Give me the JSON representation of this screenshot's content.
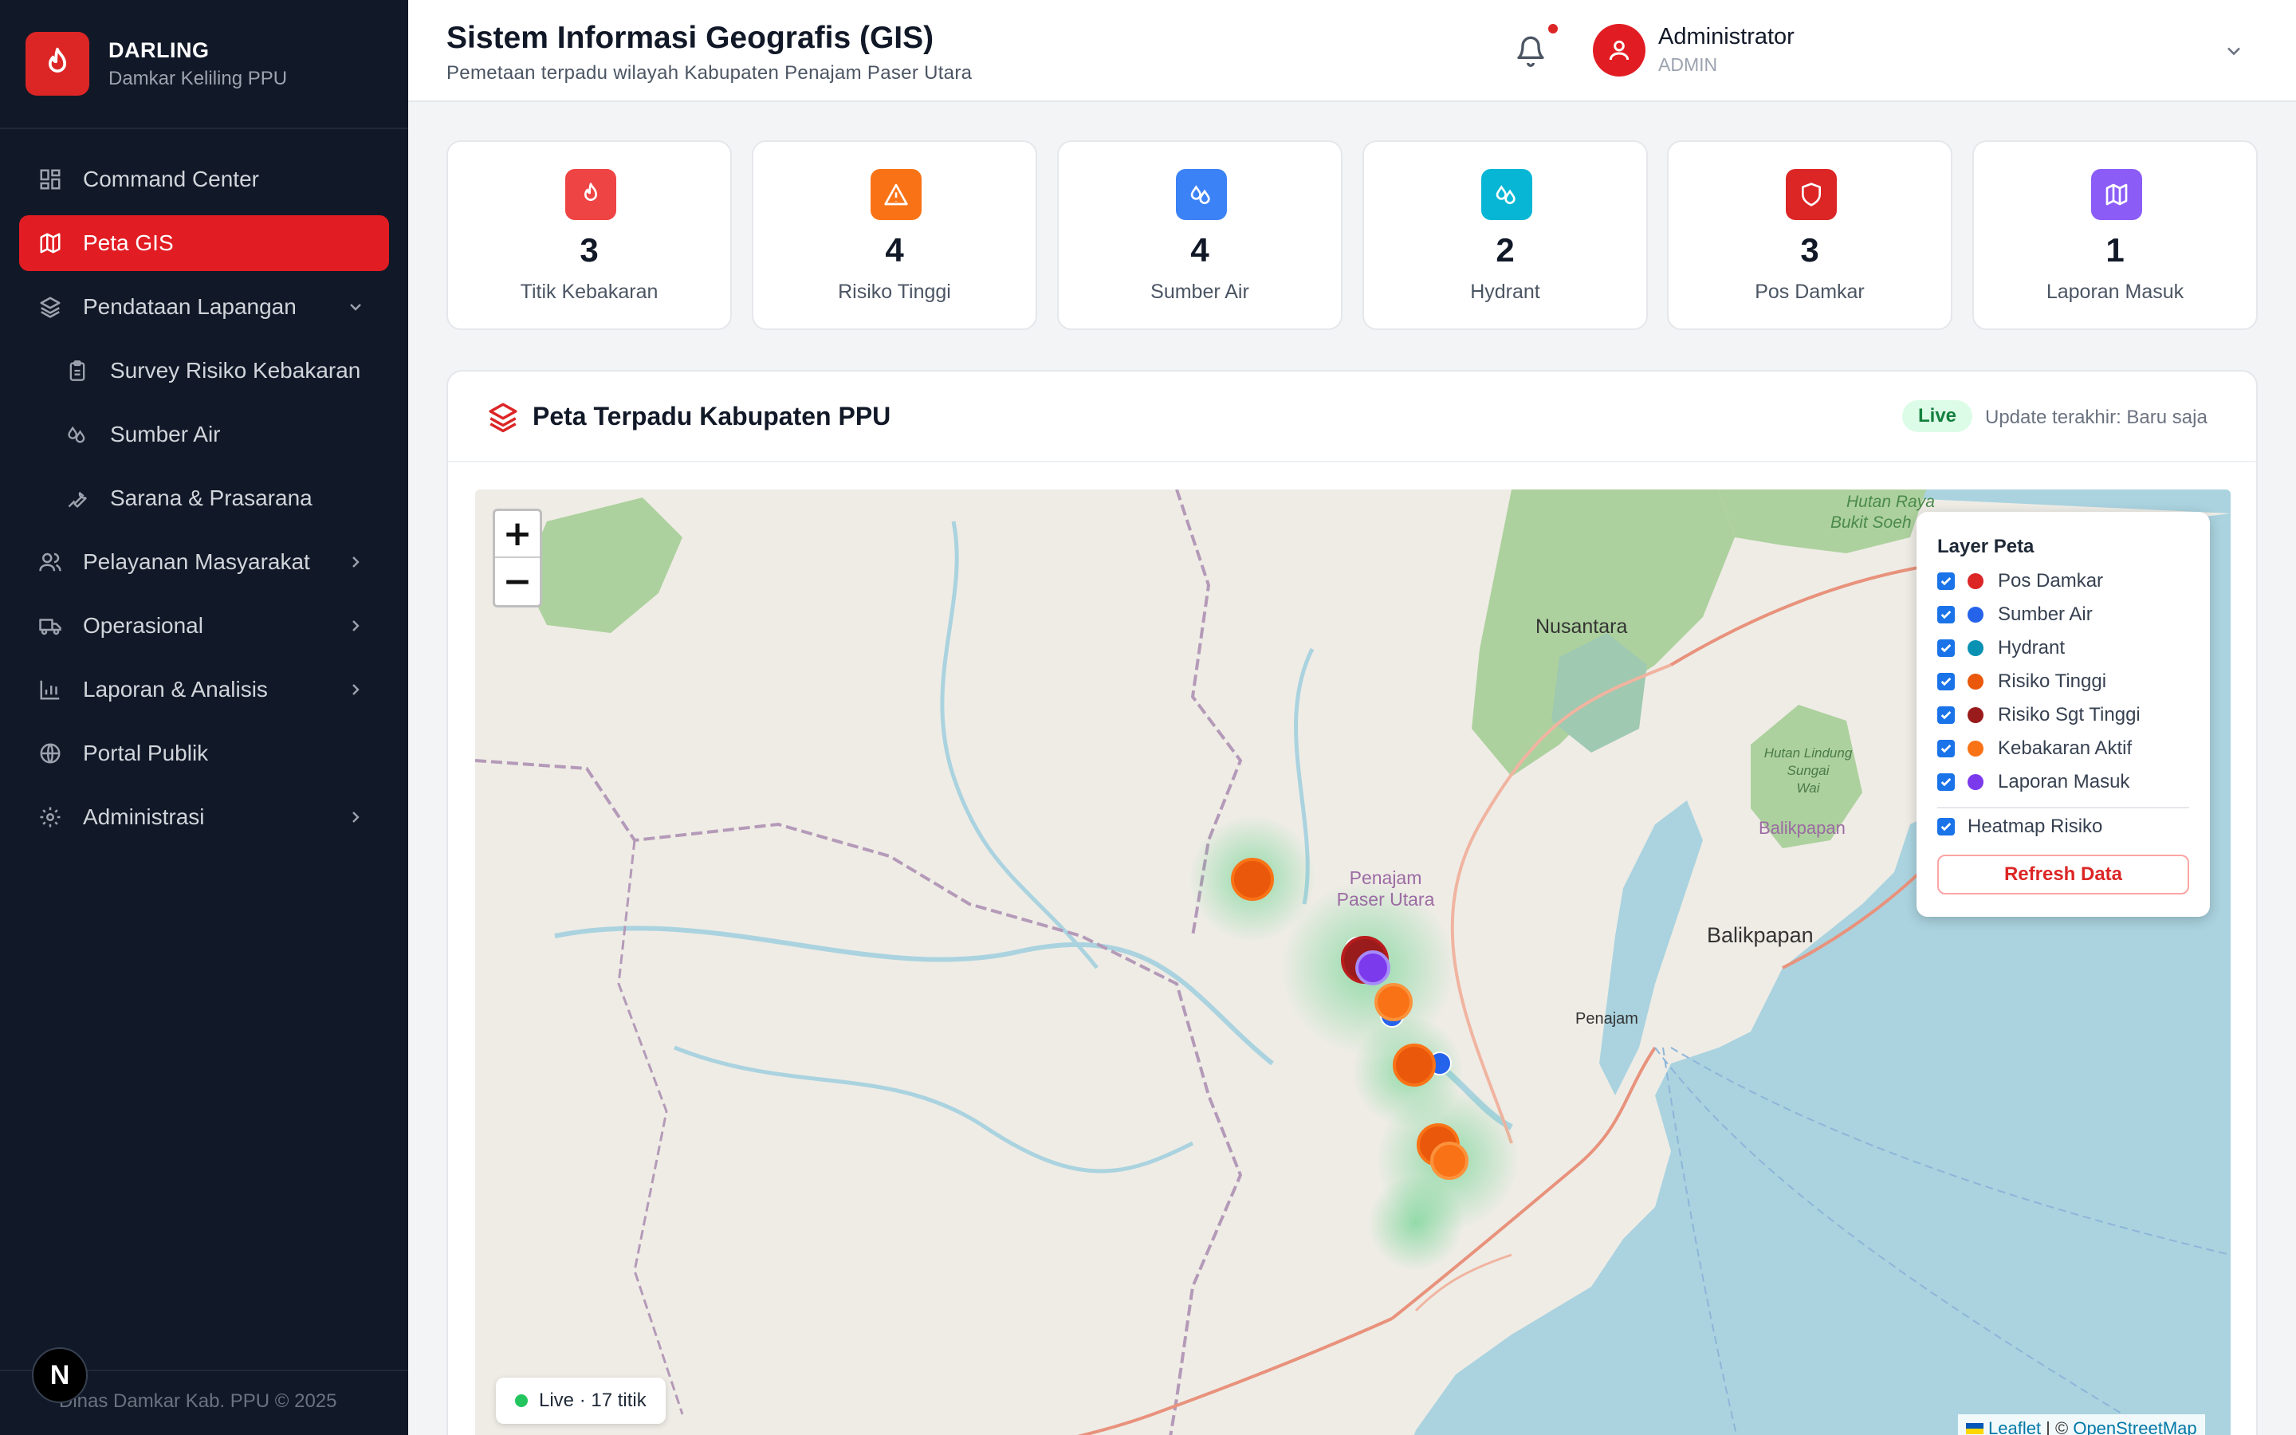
{
  "brand": {
    "title": "DARLING",
    "subtitle": "Damkar Keliling PPU"
  },
  "sidebar": {
    "items": [
      {
        "label": "Command Center",
        "icon": "grid-icon"
      },
      {
        "label": "Peta GIS",
        "icon": "map-icon",
        "active": true
      },
      {
        "label": "Pendataan Lapangan",
        "icon": "layers-icon",
        "expanded": true
      },
      {
        "label": "Survey Risiko Kebakaran",
        "icon": "clipboard-icon",
        "sub": true
      },
      {
        "label": "Sumber Air",
        "icon": "droplets-icon",
        "sub": true
      },
      {
        "label": "Sarana & Prasarana",
        "icon": "wrench-icon",
        "sub": true
      },
      {
        "label": "Pelayanan Masyarakat",
        "icon": "users-icon"
      },
      {
        "label": "Operasional",
        "icon": "truck-icon"
      },
      {
        "label": "Laporan & Analisis",
        "icon": "bar-chart-icon"
      },
      {
        "label": "Portal Publik",
        "icon": "globe-icon"
      },
      {
        "label": "Administrasi",
        "icon": "gear-icon"
      }
    ],
    "footer": "Dinas Damkar Kab. PPU © 2025",
    "badge": "N"
  },
  "header": {
    "title": "Sistem Informasi Geografis (GIS)",
    "subtitle": "Pemetaan terpadu wilayah Kabupaten Penajam Paser Utara",
    "user_name": "Administrator",
    "user_role": "ADMIN"
  },
  "stats": [
    {
      "value": "3",
      "label": "Titik Kebakaran",
      "color": "#ef4444",
      "icon": "flame-icon"
    },
    {
      "value": "4",
      "label": "Risiko Tinggi",
      "color": "#f97316",
      "icon": "warning-icon"
    },
    {
      "value": "4",
      "label": "Sumber Air",
      "color": "#3b82f6",
      "icon": "droplets-icon"
    },
    {
      "value": "2",
      "label": "Hydrant",
      "color": "#06b6d4",
      "icon": "droplets-icon"
    },
    {
      "value": "3",
      "label": "Pos Damkar",
      "color": "#dc2626",
      "icon": "shield-icon"
    },
    {
      "value": "1",
      "label": "Laporan Masuk",
      "color": "#8b5cf6",
      "icon": "map-icon"
    }
  ],
  "map_panel": {
    "title": "Peta Terpadu Kabupaten PPU",
    "live_label": "Live",
    "update_text": "Update terakhir: Baru saja",
    "zoom_in": "+",
    "zoom_out": "−",
    "live_pill": "Live · 17 titik",
    "attribution_leaflet": "Leaflet",
    "attribution_sep": " | © ",
    "attribution_osm": "OpenStreetMap",
    "place_labels": {
      "nusantara": "Nusantara",
      "penajam_pu_1": "Penajam",
      "penajam_pu_2": "Paser Utara",
      "penajam": "Penajam",
      "balikpapan": "Balikpapan",
      "balikpapan_small": "Balikpapan",
      "hutan_raya_1": "Hutan Raya",
      "hutan_raya_2": "Bukit Soeh",
      "hutan_lindung_1": "Hutan Lindung",
      "hutan_lindung_2": "Sungai",
      "hutan_lindung_3": "Wai"
    },
    "layers": {
      "title": "Layer Peta",
      "items": [
        {
          "label": "Pos Damkar",
          "color": "#dc2626",
          "checked": true
        },
        {
          "label": "Sumber Air",
          "color": "#2563eb",
          "checked": true
        },
        {
          "label": "Hydrant",
          "color": "#0891b2",
          "checked": true
        },
        {
          "label": "Risiko Tinggi",
          "color": "#ea580c",
          "checked": true
        },
        {
          "label": "Risiko Sgt Tinggi",
          "color": "#991b1b",
          "checked": true
        },
        {
          "label": "Kebakaran Aktif",
          "color": "#f97316",
          "checked": true
        },
        {
          "label": "Laporan Masuk",
          "color": "#7c3aed",
          "checked": true
        }
      ],
      "heatmap_label": "Heatmap Risiko",
      "refresh_label": "Refresh Data"
    }
  }
}
